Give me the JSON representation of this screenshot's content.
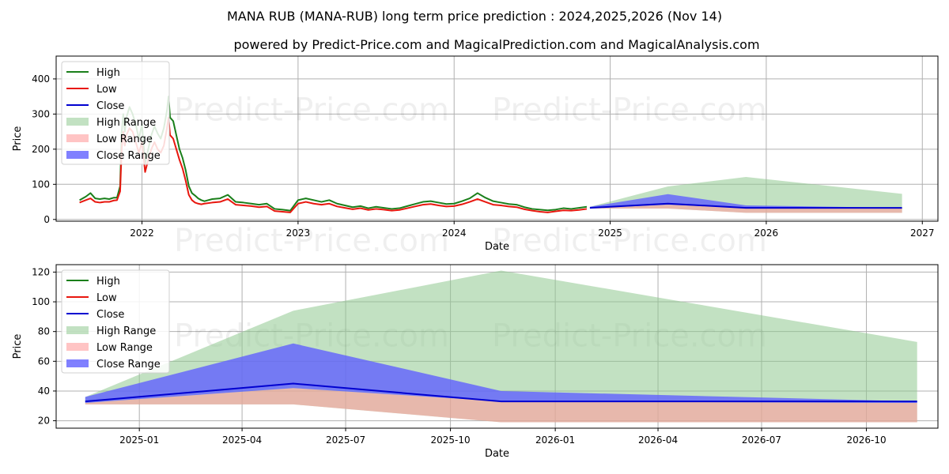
{
  "header": {
    "title": "MANA RUB (MANA-RUB) long term price prediction : 2024,2025,2026 (Nov 14)",
    "subtitle": "powered by Predict-Price.com and MagicalPrediction.com and MagicalAnalysis.com"
  },
  "watermark": "Predict-Price.com",
  "colors": {
    "high": "#1a7f1a",
    "low": "#e8170e",
    "close": "#0000d0",
    "high_range": "#8fc98f",
    "low_range": "#ff9c9c",
    "close_range": "#6060ff"
  },
  "chart_data": [
    {
      "type": "line",
      "name": "history-and-forecast",
      "xlabel": "Date",
      "ylabel": "Price",
      "xlim": [
        2021.45,
        2027.1
      ],
      "ylim": [
        -5,
        465
      ],
      "xticks": [
        2022,
        2023,
        2024,
        2025,
        2026,
        2027
      ],
      "xtick_labels": [
        "2022",
        "2023",
        "2024",
        "2025",
        "2026",
        "2027"
      ],
      "yticks": [
        0,
        100,
        200,
        300,
        400
      ],
      "grid": true,
      "legend": {
        "position": "top-left",
        "entries": [
          "High",
          "Low",
          "Close",
          "High Range",
          "Low Range",
          "Close Range"
        ]
      },
      "history": {
        "x": [
          2021.6,
          2021.64,
          2021.67,
          2021.7,
          2021.73,
          2021.76,
          2021.79,
          2021.82,
          2021.84,
          2021.86,
          2021.87,
          2021.88,
          2021.89,
          2021.9,
          2021.92,
          2021.94,
          2021.96,
          2021.98,
          2022.0,
          2022.02,
          2022.04,
          2022.06,
          2022.08,
          2022.1,
          2022.12,
          2022.14,
          2022.16,
          2022.17,
          2022.18,
          2022.2,
          2022.22,
          2022.24,
          2022.26,
          2022.28,
          2022.3,
          2022.32,
          2022.34,
          2022.36,
          2022.38,
          2022.4,
          2022.45,
          2022.5,
          2022.55,
          2022.6,
          2022.65,
          2022.7,
          2022.75,
          2022.8,
          2022.85,
          2022.9,
          2022.95,
          2023.0,
          2023.05,
          2023.1,
          2023.15,
          2023.2,
          2023.25,
          2023.3,
          2023.35,
          2023.4,
          2023.45,
          2023.5,
          2023.55,
          2023.6,
          2023.65,
          2023.7,
          2023.75,
          2023.8,
          2023.85,
          2023.9,
          2023.95,
          2024.0,
          2024.05,
          2024.1,
          2024.15,
          2024.2,
          2024.25,
          2024.3,
          2024.35,
          2024.4,
          2024.45,
          2024.5,
          2024.55,
          2024.6,
          2024.65,
          2024.7,
          2024.75,
          2024.8,
          2024.85
        ],
        "high": [
          55,
          65,
          75,
          60,
          58,
          60,
          58,
          62,
          62,
          95,
          250,
          300,
          250,
          290,
          320,
          300,
          270,
          230,
          270,
          160,
          200,
          240,
          265,
          245,
          230,
          260,
          310,
          350,
          290,
          280,
          240,
          200,
          175,
          140,
          95,
          75,
          68,
          60,
          55,
          52,
          58,
          60,
          70,
          50,
          48,
          45,
          42,
          45,
          30,
          28,
          25,
          55,
          60,
          55,
          50,
          55,
          45,
          40,
          35,
          38,
          32,
          36,
          33,
          30,
          32,
          38,
          44,
          50,
          52,
          48,
          44,
          45,
          52,
          60,
          75,
          62,
          52,
          48,
          44,
          42,
          35,
          30,
          28,
          26,
          28,
          32,
          30,
          33,
          36
        ],
        "low": [
          48,
          55,
          60,
          50,
          48,
          50,
          50,
          54,
          55,
          80,
          200,
          250,
          210,
          240,
          260,
          250,
          220,
          190,
          220,
          135,
          170,
          200,
          220,
          200,
          190,
          210,
          260,
          290,
          240,
          230,
          200,
          170,
          145,
          110,
          70,
          55,
          48,
          45,
          43,
          45,
          48,
          50,
          58,
          42,
          40,
          38,
          35,
          37,
          24,
          22,
          20,
          45,
          50,
          45,
          42,
          45,
          37,
          33,
          29,
          32,
          27,
          30,
          28,
          25,
          27,
          32,
          37,
          42,
          44,
          40,
          37,
          38,
          43,
          50,
          58,
          50,
          42,
          40,
          37,
          35,
          29,
          25,
          22,
          20,
          23,
          26,
          25,
          27,
          30
        ],
        "close": [
          52,
          60,
          68,
          55,
          53,
          55,
          54,
          58,
          58,
          88,
          225,
          275,
          230,
          265,
          290,
          275,
          245,
          210,
          245,
          148,
          185,
          220,
          242,
          222,
          210,
          235,
          285,
          320,
          265,
          255,
          220,
          185,
          160,
          125,
          82,
          65,
          58,
          52,
          49,
          48,
          53,
          55,
          64,
          46,
          44,
          41,
          38,
          41,
          27,
          25,
          22,
          50,
          55,
          50,
          46,
          50,
          41,
          36,
          32,
          35,
          29,
          33,
          30,
          27,
          29,
          35,
          40,
          46,
          48,
          44,
          40,
          41,
          47,
          55,
          66,
          56,
          47,
          44,
          40,
          38,
          32,
          27,
          25,
          23,
          25,
          29,
          27,
          30,
          33
        ]
      },
      "forecast": {
        "x": [
          2024.87,
          2025.37,
          2025.87,
          2026.87
        ],
        "high_range_top": [
          36,
          94,
          121,
          73
        ],
        "low_range_bottom": [
          31,
          31,
          19,
          19
        ],
        "close_range_top": [
          36,
          72,
          40,
          33
        ],
        "close_range_bottom": [
          32,
          42,
          33,
          32
        ],
        "close": [
          33,
          45,
          33,
          33
        ]
      }
    },
    {
      "type": "line",
      "name": "forecast-zoom",
      "xlabel": "Date",
      "ylabel": "Price",
      "xlim": [
        2024.8,
        2026.92
      ],
      "ylim": [
        15,
        125
      ],
      "xticks": [
        2025.0,
        2025.247,
        2025.496,
        2025.748,
        2026.0,
        2026.247,
        2026.496,
        2026.748
      ],
      "xtick_labels": [
        "2025-01",
        "2025-04",
        "2025-07",
        "2025-10",
        "2026-01",
        "2026-04",
        "2026-07",
        "2026-10"
      ],
      "yticks": [
        20,
        40,
        60,
        80,
        100,
        120
      ],
      "grid": true,
      "legend": {
        "position": "top-left",
        "entries": [
          "High",
          "Low",
          "Close",
          "High Range",
          "Low Range",
          "Close Range"
        ]
      },
      "forecast": {
        "x": [
          2024.87,
          2025.37,
          2025.87,
          2026.87
        ],
        "high_range_top": [
          36,
          94,
          121,
          73
        ],
        "low_range_bottom": [
          31,
          31,
          19,
          19
        ],
        "close_range_top": [
          36,
          72,
          40,
          33
        ],
        "close_range_bottom": [
          32,
          42,
          33,
          32
        ],
        "close": [
          33,
          45,
          33,
          33
        ]
      }
    }
  ]
}
